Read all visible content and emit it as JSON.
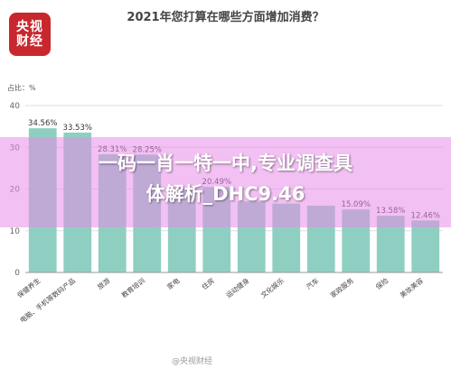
{
  "logo": {
    "line1": "央视",
    "line2": "财经"
  },
  "title": "2021年您打算在哪些方面增加消费？",
  "watermark": "@央视财经",
  "overlay": {
    "line1": "一码一肖一特一中,专业调查具",
    "line2": "体解析_DHC9.46"
  },
  "colors": {
    "bar": "#8fcfc2",
    "logo": "#c8282d",
    "overlay": "#e88ce8"
  },
  "chart_data": {
    "type": "bar",
    "title": "2021年您打算在哪些方面增加消费？",
    "ylabel": "占比：%",
    "ylim": [
      0,
      40
    ],
    "yticks": [
      0,
      10,
      20,
      30,
      40
    ],
    "categories": [
      "保健养生",
      "电脑、手机等数码产品",
      "旅游",
      "教育培训",
      "家电",
      "住房",
      "运动健身",
      "文化娱乐",
      "汽车",
      "家政服务",
      "保险",
      "美妆美容"
    ],
    "values": [
      34.56,
      33.53,
      28.31,
      28.25,
      20.0,
      20.49,
      17.0,
      16.5,
      16.0,
      15.09,
      13.58,
      12.46
    ],
    "data_labels": [
      "34.56%",
      "33.53%",
      "28.31%",
      "28.25%",
      "",
      "20.49%",
      "",
      "",
      "",
      "15.09%",
      "13.58%",
      "12.46%"
    ]
  }
}
